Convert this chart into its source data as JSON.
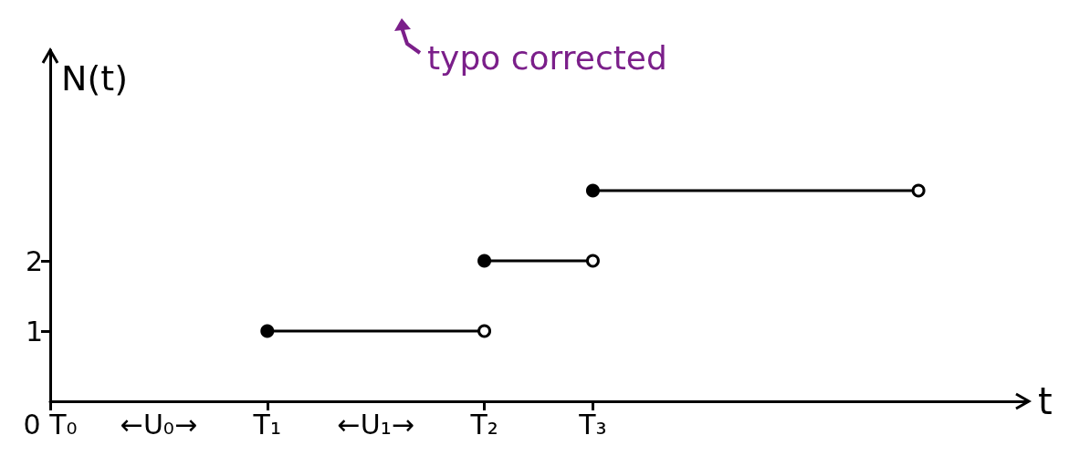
{
  "chart_data": {
    "type": "step",
    "xlabel": "t",
    "ylabel": "N(t)",
    "categories": [
      "0 T₀",
      null,
      "T₁",
      null,
      "T₂",
      "T₃",
      null,
      null,
      null,
      null
    ],
    "ylim": [
      0,
      5
    ],
    "yticks": [
      1,
      2
    ],
    "series": [
      {
        "color": "#000000",
        "values": [
          null,
          null,
          1,
          1,
          1,
          null,
          null,
          null,
          null,
          null
        ]
      },
      {
        "color": "#000000",
        "values": [
          null,
          null,
          null,
          null,
          2,
          2,
          null,
          null,
          null,
          null
        ]
      },
      {
        "color": "#000000",
        "values": [
          null,
          null,
          null,
          null,
          null,
          3,
          3,
          3,
          3,
          null
        ]
      }
    ],
    "annotations": [
      "←U₀→",
      "←U₁→",
      "typo corrected"
    ],
    "marker": "circle",
    "line_style": "solid",
    "grid": false
  }
}
